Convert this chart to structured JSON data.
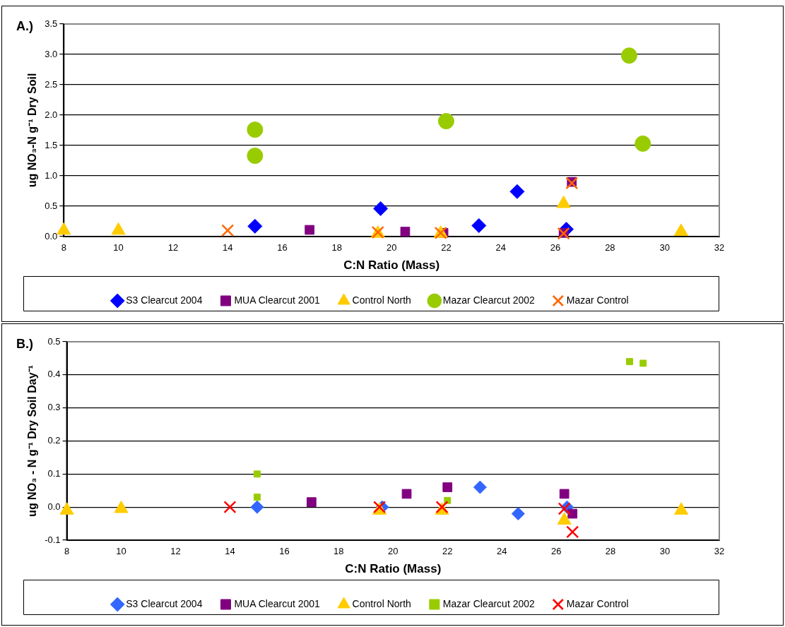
{
  "chart_data": [
    {
      "type": "scatter",
      "xlabel": "C:N Ratio (Mass)",
      "ylabel": "ug NO₃-N g⁻¹ Dry Soil",
      "annotations": [
        "A.)"
      ],
      "xlim": [
        8,
        32
      ],
      "xticks": [
        8,
        10,
        12,
        14,
        16,
        18,
        20,
        22,
        24,
        26,
        28,
        30,
        32
      ],
      "ylim": [
        0,
        3.5
      ],
      "yticks": [
        {
          "value": 0,
          "label": "0.0"
        },
        {
          "value": 0.5,
          "label": "0.5"
        },
        {
          "value": 1,
          "label": "1.0"
        },
        {
          "value": 1.5,
          "label": "1.5"
        },
        {
          "value": 2,
          "label": "2.0"
        },
        {
          "value": 2.5,
          "label": "2.5"
        },
        {
          "value": 3,
          "label": "3.0"
        },
        {
          "value": 3.5,
          "label": "3.5"
        }
      ],
      "grid": "y",
      "legend": "bottom",
      "series": [
        {
          "name": "S3 Clearcut 2004",
          "color": "#0000ff",
          "marker": "diamond",
          "x": [
            15,
            19.6,
            23.2,
            24.6,
            26.4
          ],
          "values": [
            0.17,
            0.46,
            0.18,
            0.74,
            0.12
          ]
        },
        {
          "name": "MUA Clearcut 2001",
          "color": "#800080",
          "marker": "square",
          "x": [
            17,
            20.5,
            21.9,
            26.3,
            26.6
          ],
          "values": [
            0.11,
            0.08,
            0.06,
            0.06,
            0.9
          ]
        },
        {
          "name": "Control North",
          "color": "#ffcc00",
          "marker": "triangle",
          "x": [
            8,
            10,
            19.5,
            21.8,
            26.3,
            30.6
          ],
          "values": [
            0.1,
            0.1,
            0.05,
            0.05,
            0.54,
            0.08
          ]
        },
        {
          "name": "Mazar Clearcut 2002",
          "color": "#99cc00",
          "marker": "circle",
          "x": [
            15,
            15,
            22,
            28.7,
            29.2
          ],
          "values": [
            1.76,
            1.33,
            1.9,
            2.98,
            1.53
          ]
        },
        {
          "name": "Mazar Control",
          "color": "#ff6600",
          "marker": "cross",
          "x": [
            14,
            19.5,
            21.8,
            26.3,
            26.6
          ],
          "values": [
            0.1,
            0.07,
            0.06,
            0.05,
            0.88
          ]
        }
      ]
    },
    {
      "type": "scatter",
      "xlabel": "C:N Ratio (Mass)",
      "ylabel": "ug NO₃ - N g⁻¹ Dry Soil Day⁻¹",
      "annotations": [
        "B.)"
      ],
      "xlim": [
        8,
        32
      ],
      "xticks": [
        8,
        10,
        12,
        14,
        16,
        18,
        20,
        22,
        24,
        26,
        28,
        30,
        32
      ],
      "ylim": [
        -0.1,
        0.5
      ],
      "yticks": [
        {
          "value": -0.1,
          "label": "-0.1"
        },
        {
          "value": 0,
          "label": "0.0"
        },
        {
          "value": 0.1,
          "label": "0.1"
        },
        {
          "value": 0.2,
          "label": "0.2"
        },
        {
          "value": 0.3,
          "label": "0.3"
        },
        {
          "value": 0.4,
          "label": "0.4"
        },
        {
          "value": 0.5,
          "label": "0.5"
        }
      ],
      "grid": "y",
      "legend": "bottom",
      "series": [
        {
          "name": "S3 Clearcut 2004",
          "color": "#3366ff",
          "marker": "diamond",
          "x": [
            15,
            19.6,
            23.2,
            24.6,
            26.4
          ],
          "values": [
            0.0,
            0.0,
            0.06,
            -0.02,
            0.0
          ]
        },
        {
          "name": "MUA Clearcut 2001",
          "color": "#800080",
          "marker": "square",
          "x": [
            17,
            20.5,
            22,
            26.3,
            26.6
          ],
          "values": [
            0.015,
            0.04,
            0.06,
            0.04,
            -0.02
          ]
        },
        {
          "name": "Control North",
          "color": "#ffcc00",
          "marker": "triangle",
          "x": [
            8,
            10,
            19.5,
            21.8,
            26.3,
            30.6
          ],
          "values": [
            -0.01,
            -0.005,
            -0.01,
            -0.01,
            -0.04,
            -0.01
          ]
        },
        {
          "name": "Mazar Clearcut 2002",
          "color": "#99cc00",
          "marker": "square",
          "x": [
            15,
            15,
            22,
            28.7,
            29.2
          ],
          "values": [
            0.1,
            0.03,
            0.02,
            0.44,
            0.435
          ]
        },
        {
          "name": "Mazar Control",
          "color": "#ff0000",
          "marker": "cross",
          "x": [
            14,
            19.5,
            21.8,
            26.3,
            26.6
          ],
          "values": [
            0,
            0,
            0,
            -0.005,
            -0.075
          ]
        }
      ]
    }
  ]
}
